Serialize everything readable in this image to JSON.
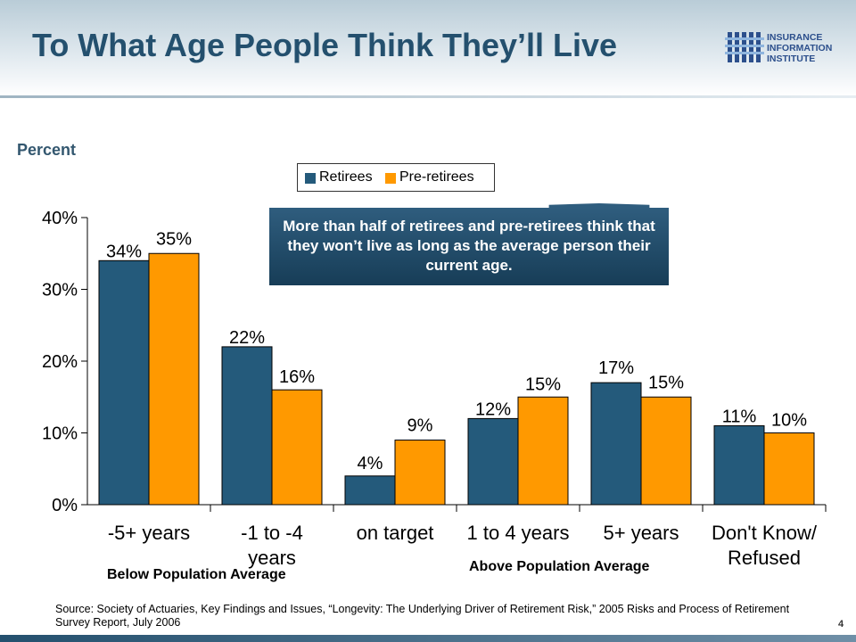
{
  "header": {
    "title": "To What Age People Think They’ll Live",
    "logo_lines": [
      "INSURANCE",
      "INFORMATION",
      "INSTITUTE"
    ]
  },
  "unit_label": "Percent",
  "callout_text": "More than half of retirees and pre-retirees think that they won’t live as long as the average person their current age.",
  "group_labels": {
    "below": "Below Population Average",
    "above": "Above Population Average"
  },
  "source_text": "Source: Society of Actuaries, Key Findings and Issues, “Longevity: The Underlying Driver of Retirement Risk,” 2005 Risks and Process of Retirement Survey Report, July 2006",
  "page_number": "4",
  "colors": {
    "retirees": "#245a7b",
    "pre_retirees": "#ff9900",
    "title": "#24506e"
  },
  "chart_data": {
    "type": "bar",
    "title": "",
    "ylabel": "Percent",
    "xlabel": "",
    "categories": [
      "-5+ years",
      "-1 to -4 years",
      "on target",
      "1 to 4 years",
      "5+ years",
      "Don't Know/ Refused"
    ],
    "category_lines": [
      [
        "-5+ years"
      ],
      [
        "-1 to -4",
        "years"
      ],
      [
        "on target"
      ],
      [
        "1 to 4 years"
      ],
      [
        "5+ years"
      ],
      [
        "Don't Know/",
        "Refused"
      ]
    ],
    "series": [
      {
        "name": "Retirees",
        "values": [
          34,
          22,
          4,
          12,
          17,
          11
        ],
        "labels": [
          "34%",
          "22%",
          "4%",
          "12%",
          "17%",
          "11%"
        ]
      },
      {
        "name": "Pre-retirees",
        "values": [
          35,
          16,
          9,
          15,
          15,
          10
        ],
        "labels": [
          "35%",
          "16%",
          "9%",
          "15%",
          "15%",
          "10%"
        ]
      }
    ],
    "ylim": [
      0,
      40
    ],
    "yticks": [
      0,
      10,
      20,
      30,
      40
    ],
    "ytick_labels": [
      "0%",
      "10%",
      "20%",
      "30%",
      "40%"
    ],
    "legend_position": "top-center",
    "grid": false
  }
}
